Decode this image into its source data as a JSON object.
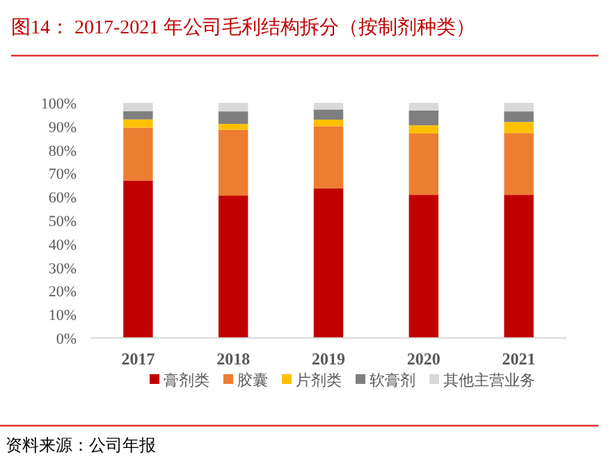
{
  "chart_data": {
    "type": "bar",
    "stacked": true,
    "title": "图14：  2017-2021 年公司毛利结构拆分（按制剂种类）",
    "categories": [
      "2017",
      "2018",
      "2019",
      "2020",
      "2021"
    ],
    "series": [
      {
        "name": "膏剂类",
        "color": "#c00000",
        "values": [
          67,
          60.6,
          63.7,
          60.9,
          60.9
        ]
      },
      {
        "name": "胶囊",
        "color": "#ed7d31",
        "values": [
          22.5,
          28,
          26.4,
          26.1,
          26.3
        ]
      },
      {
        "name": "片剂类",
        "color": "#ffc000",
        "values": [
          3.5,
          2.5,
          2.8,
          3.5,
          4.7
        ]
      },
      {
        "name": "软膏剂",
        "color": "#7f7f7f",
        "values": [
          3.5,
          5.3,
          4.3,
          6.3,
          4.5
        ]
      },
      {
        "name": "其他主营业务",
        "color": "#d9d9d9",
        "values": [
          3.5,
          3.6,
          2.8,
          3.2,
          3.6
        ]
      }
    ],
    "ylim": [
      0,
      100
    ],
    "yticks": [
      {
        "value": 0,
        "label": "0%"
      },
      {
        "value": 10,
        "label": "10%"
      },
      {
        "value": 20,
        "label": "20%"
      },
      {
        "value": 30,
        "label": "30%"
      },
      {
        "value": 40,
        "label": "40%"
      },
      {
        "value": 50,
        "label": "50%"
      },
      {
        "value": 60,
        "label": "60%"
      },
      {
        "value": 70,
        "label": "70%"
      },
      {
        "value": 80,
        "label": "80%"
      },
      {
        "value": 90,
        "label": "90%"
      },
      {
        "value": 100,
        "label": "100%"
      }
    ],
    "legend": "bottom",
    "annotations": [
      "资料来源：公司年报"
    ]
  }
}
